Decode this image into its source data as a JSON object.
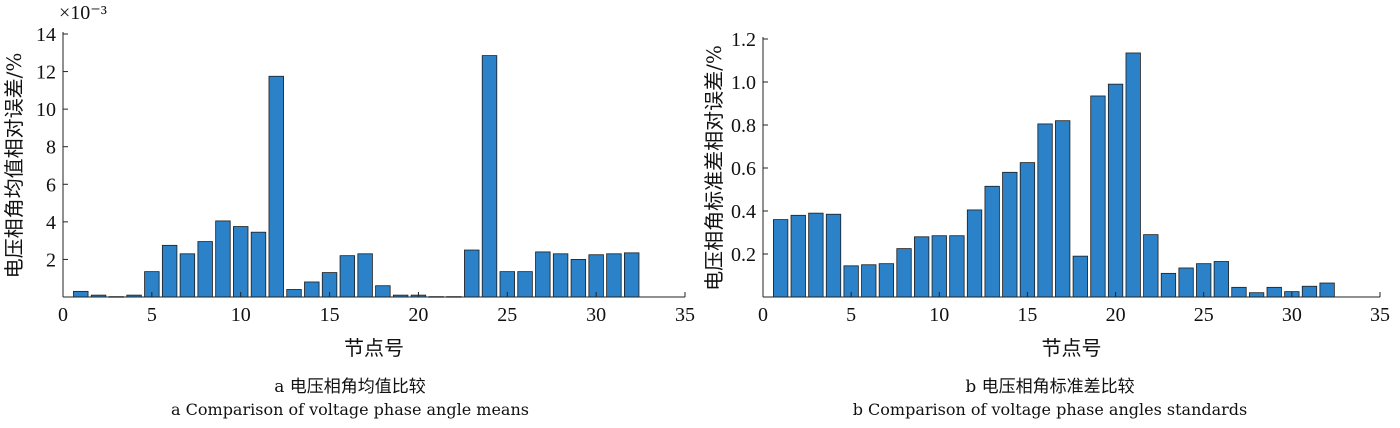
{
  "chart_data": [
    {
      "type": "bar",
      "multiplier_label": "×10⁻³",
      "ylabel": "电压相角均值相对误差/%",
      "xlabel": "节点号",
      "caption_cn": "a  电压相角均值比较",
      "caption_en": "a  Comparison of voltage phase angle means",
      "xlim": [
        0,
        35
      ],
      "ylim": [
        0,
        14
      ],
      "xticks": [
        0,
        5,
        10,
        15,
        20,
        25,
        30,
        35
      ],
      "yticks": [
        2,
        4,
        6,
        8,
        10,
        12,
        14
      ],
      "x": [
        1,
        2,
        3,
        4,
        5,
        6,
        7,
        8,
        9,
        10,
        11,
        12,
        13,
        14,
        15,
        16,
        17,
        18,
        19,
        20,
        21,
        22,
        23,
        24,
        25,
        26,
        27,
        28,
        29,
        30,
        31,
        32
      ],
      "values": [
        0.3,
        0.1,
        0.02,
        0.1,
        1.35,
        2.75,
        2.3,
        2.95,
        4.05,
        3.75,
        3.45,
        11.75,
        0.4,
        0.8,
        1.3,
        2.2,
        2.3,
        0.6,
        0.1,
        0.1,
        0.02,
        0.02,
        2.5,
        12.85,
        1.35,
        1.35,
        2.4,
        2.3,
        2.0,
        2.25,
        2.3,
        2.35
      ],
      "bar_color": "#2b82c9"
    },
    {
      "type": "bar",
      "ylabel": "电压相角标准差相对误差/%",
      "xlabel": "节点号",
      "caption_cn": "b  电压相角标准差比较",
      "caption_en": "b  Comparison of voltage phase angles standards",
      "xlim": [
        0,
        35
      ],
      "ylim": [
        0,
        1.2
      ],
      "xticks": [
        0,
        5,
        10,
        15,
        20,
        25,
        30,
        35
      ],
      "yticks": [
        "0.2",
        "0.4",
        "0.6",
        "0.8",
        "1.0",
        "1.2"
      ],
      "x": [
        1,
        2,
        3,
        4,
        5,
        6,
        7,
        8,
        9,
        10,
        11,
        12,
        13,
        14,
        15,
        16,
        17,
        18,
        19,
        20,
        21,
        22,
        23,
        24,
        25,
        26,
        27,
        28,
        29,
        30,
        31,
        32
      ],
      "values": [
        0.36,
        0.38,
        0.39,
        0.385,
        0.145,
        0.15,
        0.155,
        0.225,
        0.28,
        0.285,
        0.285,
        0.405,
        0.515,
        0.58,
        0.625,
        0.805,
        0.82,
        0.19,
        0.935,
        0.99,
        1.135,
        0.29,
        0.11,
        0.135,
        0.155,
        0.165,
        0.045,
        0.02,
        0.045,
        0.025,
        0.05,
        0.065
      ],
      "bar_color": "#2b82c9"
    }
  ]
}
